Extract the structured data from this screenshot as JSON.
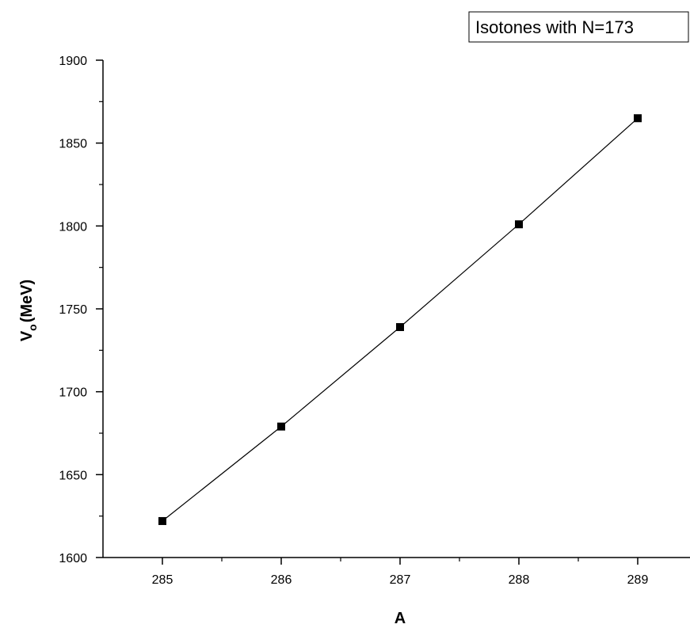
{
  "chart_data": {
    "type": "line",
    "legend_text": "Isotones with N=173",
    "legend_position": "top-right",
    "xlabel": "A",
    "ylabel_main": "V",
    "ylabel_sub": "o",
    "ylabel_unit": "(MeV)",
    "x": [
      285,
      286,
      287,
      288,
      289
    ],
    "y": [
      1622,
      1679,
      1739,
      1801,
      1865
    ],
    "xlim": [
      284.5,
      289.5
    ],
    "ylim": [
      1600,
      1900
    ],
    "x_ticks": [
      285,
      286,
      287,
      288,
      289
    ],
    "x_tick_labels": [
      "285",
      "286",
      "287",
      "288",
      "289"
    ],
    "y_ticks": [
      1600,
      1650,
      1700,
      1750,
      1800,
      1850,
      1900
    ],
    "y_tick_labels": [
      "1600",
      "1650",
      "1700",
      "1750",
      "1800",
      "1850",
      "1900"
    ],
    "marker": "square",
    "line_color": "#000000",
    "marker_color": "#000000",
    "grid": false
  }
}
